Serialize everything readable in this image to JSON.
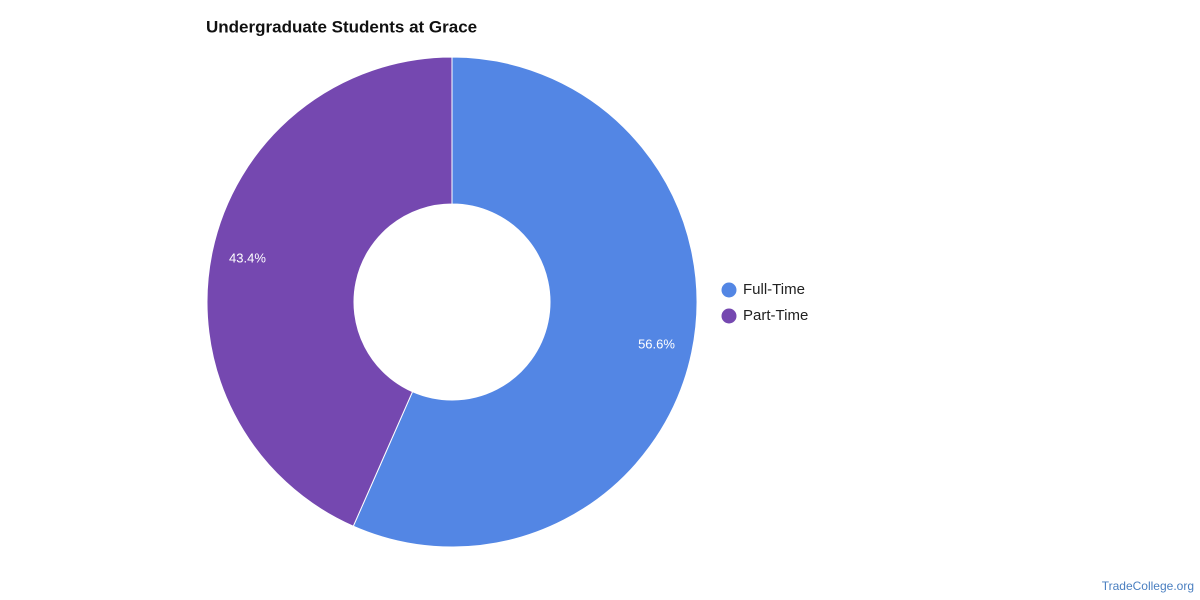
{
  "chart_data": {
    "type": "donut",
    "title": "Undergraduate Students at Grace",
    "categories": [
      "Full-Time",
      "Part-Time"
    ],
    "values": [
      56.6,
      43.4
    ],
    "value_labels": [
      "56.6%",
      "43.4%"
    ],
    "colors": [
      "#5386e4",
      "#7548b0"
    ],
    "legend": "right"
  },
  "footer": "TradeCollege.org"
}
